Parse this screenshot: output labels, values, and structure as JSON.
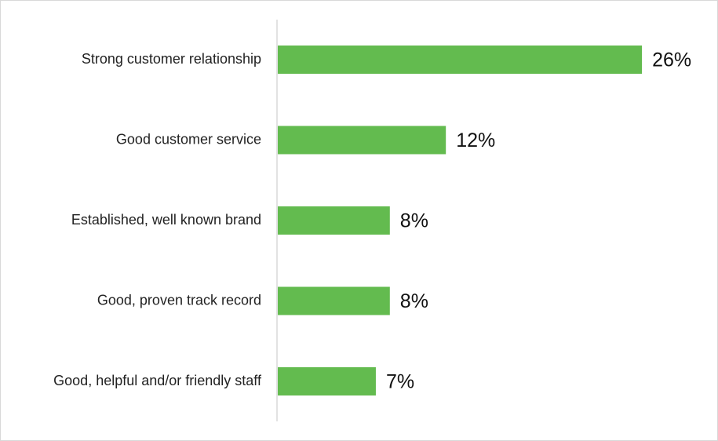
{
  "chart_data": {
    "type": "bar",
    "orientation": "horizontal",
    "title": "",
    "xlabel": "",
    "ylabel": "",
    "categories": [
      "Strong customer relationship",
      "Good customer service",
      "Established, well known brand",
      "Good, proven track record",
      "Good, helpful and/or friendly staff"
    ],
    "values": [
      26,
      12,
      8,
      8,
      7
    ],
    "value_labels": [
      "26%",
      "12%",
      "8%",
      "8%",
      "7%"
    ],
    "unit": "%",
    "xlim": [
      0,
      30
    ],
    "grid": false,
    "legend": "none",
    "bar_color": "#63bb4f",
    "axis_color": "#d9d9d9"
  }
}
